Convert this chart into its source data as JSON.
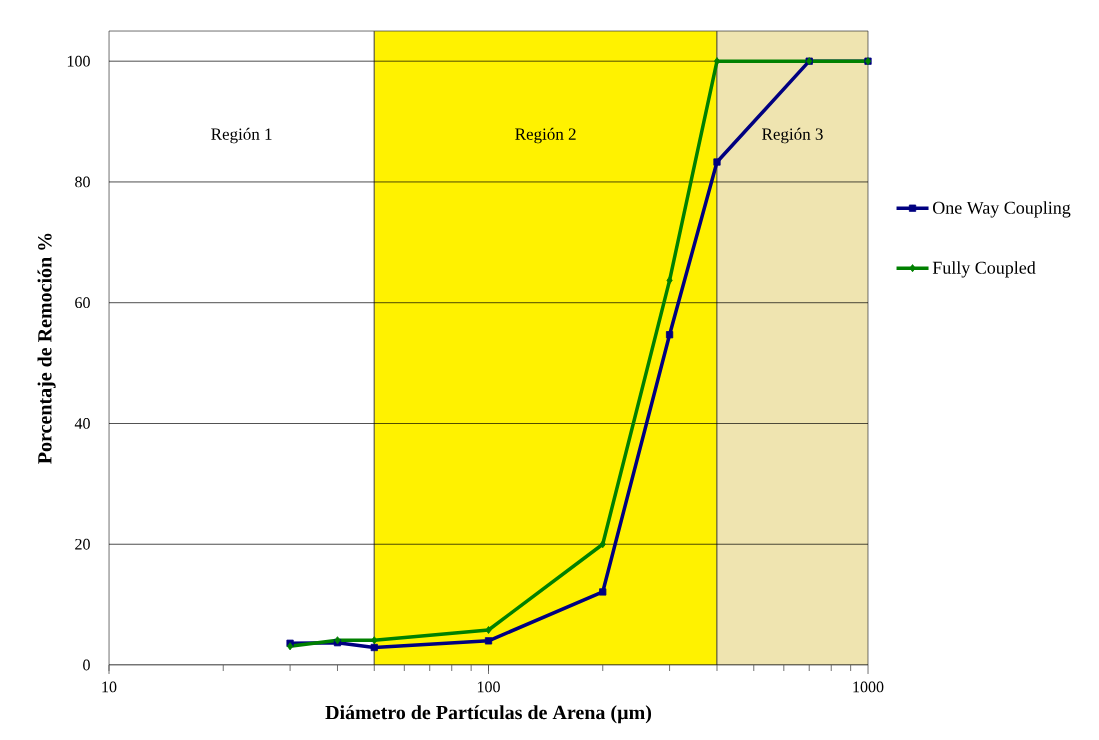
{
  "chart_data": {
    "type": "line",
    "xlabel": "Diámetro de Partículas de Arena (µm)",
    "ylabel": "Porcentaje de Remoción %",
    "log": "x",
    "x": [
      30,
      40,
      50,
      100,
      200,
      300,
      400,
      700,
      1000
    ],
    "series": [
      {
        "name": "One Way Coupling",
        "color": "#000080",
        "marker": "square",
        "values": [
          3.6,
          3.7,
          2.9,
          4.0,
          12.1,
          54.7,
          83.3,
          100,
          100
        ]
      },
      {
        "name": "Fully Coupled",
        "color": "#008000",
        "marker": "diamond",
        "values": [
          3.1,
          4.1,
          4.1,
          5.8,
          20.0,
          63.7,
          100,
          100,
          100
        ]
      }
    ],
    "xlim": [
      10,
      1000
    ],
    "xticks": [
      10,
      100,
      1000
    ],
    "ylim": [
      0,
      105
    ],
    "yticks": [
      0,
      20,
      40,
      60,
      80,
      100
    ],
    "grid": "y",
    "legend": "right",
    "line_style": "solid",
    "bands": [
      {
        "axis": "x",
        "from": 10,
        "to": 50,
        "label": "Región 1",
        "color": "#ffffff"
      },
      {
        "axis": "x",
        "from": 50,
        "to": 400,
        "label": "Región 2",
        "color": "#fff200"
      },
      {
        "axis": "x",
        "from": 400,
        "to": 1000,
        "label": "Región 3",
        "color": "#efe4b0"
      }
    ]
  }
}
